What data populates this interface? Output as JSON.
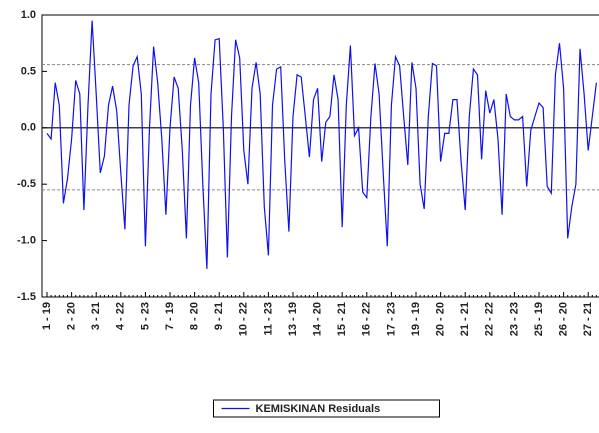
{
  "chart_data": {
    "type": "line",
    "categories": [
      "1 - 19",
      null,
      null,
      null,
      null,
      null,
      "2 - 20",
      null,
      null,
      null,
      null,
      null,
      "3 - 21",
      null,
      null,
      null,
      null,
      null,
      "4 - 22",
      null,
      null,
      null,
      null,
      null,
      "5 - 23",
      null,
      null,
      null,
      null,
      null,
      "7 - 19",
      null,
      null,
      null,
      null,
      null,
      "8 - 20",
      null,
      null,
      null,
      null,
      null,
      "9 - 21",
      null,
      null,
      null,
      null,
      null,
      "10 - 22",
      null,
      null,
      null,
      null,
      null,
      "11 - 23",
      null,
      null,
      null,
      null,
      null,
      "13 - 19",
      null,
      null,
      null,
      null,
      null,
      "14 - 20",
      null,
      null,
      null,
      null,
      null,
      "15 - 21",
      null,
      null,
      null,
      null,
      null,
      "16 - 22",
      null,
      null,
      null,
      null,
      null,
      "17 - 23",
      null,
      null,
      null,
      null,
      null,
      "19 - 19",
      null,
      null,
      null,
      null,
      null,
      "20 - 20",
      null,
      null,
      null,
      null,
      null,
      "21 - 21",
      null,
      null,
      null,
      null,
      null,
      "22 - 22",
      null,
      null,
      null,
      null,
      null,
      "23 - 23",
      null,
      null,
      null,
      null,
      null,
      "25 - 19",
      null,
      null,
      null,
      null,
      null,
      "26 - 20",
      null,
      null,
      null,
      null,
      null,
      "27 - 21",
      null,
      null
    ],
    "series": [
      {
        "name": "KEMISKINAN Residuals",
        "color": "#1010ee",
        "values": [
          -0.05,
          -0.1,
          0.4,
          0.2,
          -0.67,
          -0.45,
          -0.1,
          0.42,
          0.3,
          -0.73,
          0.2,
          0.95,
          0.3,
          -0.4,
          -0.25,
          0.2,
          0.37,
          0.15,
          -0.4,
          -0.9,
          0.2,
          0.55,
          0.63,
          0.3,
          -1.05,
          0.0,
          0.72,
          0.4,
          -0.1,
          -0.77,
          0.0,
          0.45,
          0.35,
          -0.2,
          -0.98,
          0.2,
          0.62,
          0.4,
          -0.5,
          -1.25,
          0.3,
          0.78,
          0.79,
          0.0,
          -1.15,
          0.1,
          0.78,
          0.62,
          -0.2,
          -0.5,
          0.35,
          0.58,
          0.3,
          -0.7,
          -1.13,
          0.2,
          0.52,
          0.54,
          -0.3,
          -0.92,
          0.1,
          0.47,
          0.45,
          0.1,
          -0.26,
          0.25,
          0.35,
          -0.3,
          0.05,
          0.1,
          0.47,
          0.25,
          -0.88,
          0.2,
          0.73,
          -0.07,
          0.0,
          -0.57,
          -0.62,
          0.1,
          0.57,
          0.3,
          -0.4,
          -1.05,
          0.2,
          0.63,
          0.55,
          0.1,
          -0.33,
          0.58,
          0.35,
          -0.5,
          -0.72,
          0.1,
          0.57,
          0.55,
          -0.3,
          -0.05,
          -0.05,
          0.25,
          0.25,
          -0.3,
          -0.73,
          0.1,
          0.52,
          0.47,
          -0.28,
          0.33,
          0.13,
          0.25,
          -0.1,
          -0.77,
          0.3,
          0.1,
          0.07,
          0.07,
          0.1,
          -0.52,
          -0.02,
          0.1,
          0.22,
          0.18,
          -0.52,
          -0.58,
          0.47,
          0.75,
          0.35,
          -0.98,
          -0.7,
          -0.5,
          0.7,
          0.3,
          -0.2,
          0.1,
          0.4
        ]
      }
    ],
    "ylim": [
      -1.5,
      1.0
    ],
    "yticks": [
      {
        "value": -1.5,
        "label": "-1.5"
      },
      {
        "value": -1.0,
        "label": "-1.0"
      },
      -0.5,
      {
        "value": 0.0,
        "label": "0.0"
      },
      0.5,
      {
        "value": 1.0,
        "label": "1.0"
      }
    ],
    "bands": [
      0.56,
      -0.55
    ],
    "zero_line": true
  }
}
